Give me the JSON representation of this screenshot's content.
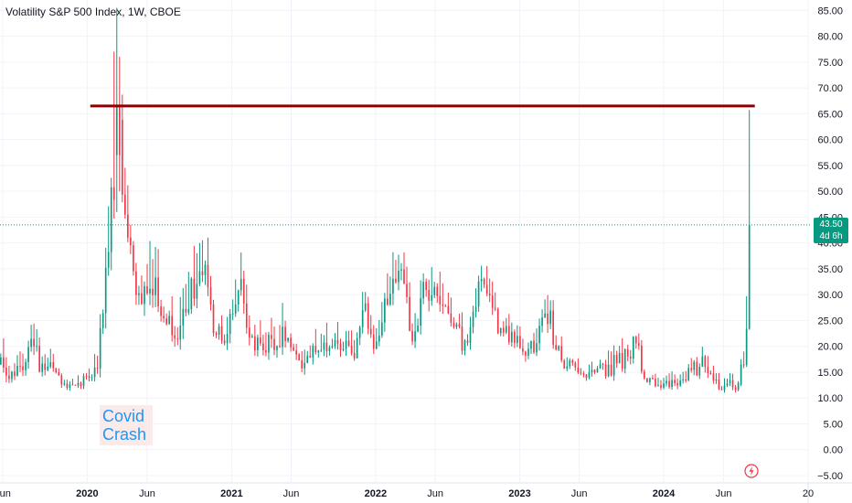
{
  "chart_title": "Volatility S&P 500 Index, 1W, CBOE",
  "last_price_label": "43.50",
  "countdown_label": "4d 6h",
  "annotation": {
    "line1": "Covid",
    "line2": "Crash"
  },
  "icons": {
    "event": "lightning-bolt-icon"
  },
  "colors": {
    "up": "#089981",
    "down": "#f23645",
    "hline": "#8b0000",
    "price_line": "#089981",
    "axis_text": "#131722",
    "annotation_text": "#2196f3",
    "annotation_bg": "#fbeaea"
  },
  "chart_data": {
    "type": "candlestick",
    "title": "Volatility S&P 500 Index, 1W, CBOE",
    "interval": "1W",
    "ylim": [
      -5,
      87
    ],
    "yticks": [
      -5,
      0,
      5,
      10,
      15,
      20,
      25,
      30,
      35,
      40,
      45,
      50,
      55,
      60,
      65,
      70,
      75,
      80,
      85
    ],
    "y_tick_labels": [
      "−5.00",
      "0.00",
      "5.00",
      "10.00",
      "15.00",
      "20.00",
      "25.00",
      "30.00",
      "35.00",
      "40.00",
      "45.00",
      "50.00",
      "55.00",
      "60.00",
      "65.00",
      "70.00",
      "75.00",
      "80.00",
      "85.00"
    ],
    "x_tick_labels": [
      {
        "label": "Jun",
        "date": "2019-06-01"
      },
      {
        "label": "2020",
        "date": "2020-01-01"
      },
      {
        "label": "Jun",
        "date": "2020-06-01"
      },
      {
        "label": "2021",
        "date": "2021-01-01"
      },
      {
        "label": "Jun",
        "date": "2021-06-01"
      },
      {
        "label": "2022",
        "date": "2022-01-01"
      },
      {
        "label": "Jun",
        "date": "2022-06-01"
      },
      {
        "label": "2023",
        "date": "2023-01-01"
      },
      {
        "label": "Jun",
        "date": "2023-06-01"
      },
      {
        "label": "2024",
        "date": "2024-01-01"
      },
      {
        "label": "Jun",
        "date": "2024-06-01"
      },
      {
        "label": "20",
        "date": "2025-01-01"
      }
    ],
    "x_range": [
      "2019-05-25",
      "2025-01-01"
    ],
    "anchors": [
      [
        "2019-05-27",
        16.5,
        4,
        2
      ],
      [
        "2019-07-01",
        13.5,
        2.5,
        1.5
      ],
      [
        "2019-08-12",
        20,
        5,
        3
      ],
      [
        "2019-09-02",
        17,
        3,
        2
      ],
      [
        "2019-10-07",
        16,
        3,
        2
      ],
      [
        "2019-11-04",
        12.5,
        1.5,
        1
      ],
      [
        "2019-12-16",
        12.8,
        1.5,
        1
      ],
      [
        "2020-01-27",
        17,
        3,
        2
      ],
      [
        "2020-02-24",
        40,
        10,
        4
      ],
      [
        "2020-03-09",
        54,
        14,
        6
      ],
      [
        "2020-03-16",
        70,
        15,
        6
      ],
      [
        "2020-03-23",
        62,
        14,
        6
      ],
      [
        "2020-03-30",
        48,
        8,
        5
      ],
      [
        "2020-04-13",
        40,
        6,
        4
      ],
      [
        "2020-04-27",
        35,
        5,
        4
      ],
      [
        "2020-05-18",
        28,
        5,
        3
      ],
      [
        "2020-06-08",
        35,
        10,
        4
      ],
      [
        "2020-07-06",
        28,
        4,
        3
      ],
      [
        "2020-08-10",
        22,
        4,
        2
      ],
      [
        "2020-09-07",
        27,
        8,
        3
      ],
      [
        "2020-10-26",
        38,
        6,
        4
      ],
      [
        "2020-11-16",
        23,
        4,
        2
      ],
      [
        "2020-12-14",
        22,
        3,
        2
      ],
      [
        "2021-01-25",
        33,
        8,
        3
      ],
      [
        "2021-02-15",
        22,
        4,
        2
      ],
      [
        "2021-03-15",
        20,
        4,
        2
      ],
      [
        "2021-05-10",
        22,
        5,
        2
      ],
      [
        "2021-06-14",
        17,
        3,
        2
      ],
      [
        "2021-08-16",
        19,
        4,
        2
      ],
      [
        "2021-09-27",
        22,
        4,
        2
      ],
      [
        "2021-11-08",
        17,
        3,
        2
      ],
      [
        "2021-11-29",
        30,
        5,
        3
      ],
      [
        "2021-12-27",
        18,
        3,
        2
      ],
      [
        "2022-01-24",
        30,
        6,
        3
      ],
      [
        "2022-03-07",
        33,
        6,
        3
      ],
      [
        "2022-04-04",
        22,
        3,
        2
      ],
      [
        "2022-05-09",
        32,
        6,
        3
      ],
      [
        "2022-06-13",
        30,
        5,
        3
      ],
      [
        "2022-07-11",
        25,
        4,
        2
      ],
      [
        "2022-08-15",
        20,
        3,
        2
      ],
      [
        "2022-09-26",
        32,
        5,
        3
      ],
      [
        "2022-10-10",
        31,
        4,
        3
      ],
      [
        "2022-11-14",
        23,
        3,
        2
      ],
      [
        "2022-12-19",
        21,
        3,
        2
      ],
      [
        "2023-02-06",
        19,
        3,
        2
      ],
      [
        "2023-03-13",
        26,
        5,
        3
      ],
      [
        "2023-04-17",
        17,
        2,
        2
      ],
      [
        "2023-06-12",
        14,
        2,
        1
      ],
      [
        "2023-08-14",
        16,
        3,
        2
      ],
      [
        "2023-09-25",
        18,
        3,
        2
      ],
      [
        "2023-10-23",
        21,
        3,
        2
      ],
      [
        "2023-11-13",
        14,
        2,
        1
      ],
      [
        "2023-12-11",
        12.5,
        1.5,
        1
      ],
      [
        "2024-02-12",
        13.5,
        2,
        1
      ],
      [
        "2024-04-15",
        17,
        3,
        2
      ],
      [
        "2024-05-20",
        12.5,
        1.5,
        1
      ],
      [
        "2024-07-01",
        12.5,
        1.5,
        1
      ],
      [
        "2024-07-22",
        16,
        2,
        1.5
      ],
      [
        "2024-08-05",
        24,
        3,
        2
      ]
    ],
    "candles": [
      {
        "date": "2024-07-15",
        "o": 12.6,
        "h": 17.5,
        "l": 12.3,
        "c": 16.5
      },
      {
        "date": "2024-07-22",
        "o": 16.5,
        "h": 19.0,
        "l": 15.8,
        "c": 16.4
      },
      {
        "date": "2024-07-29",
        "o": 16.4,
        "h": 29.7,
        "l": 16.0,
        "c": 23.4
      },
      {
        "date": "2024-08-05",
        "o": 23.4,
        "h": 65.7,
        "l": 23.2,
        "c": 43.5
      }
    ],
    "horizontal_lines": [
      {
        "y": 66.5,
        "from": "2020-03-09",
        "to": "2024-08-05"
      }
    ],
    "last_price": 43.5
  }
}
